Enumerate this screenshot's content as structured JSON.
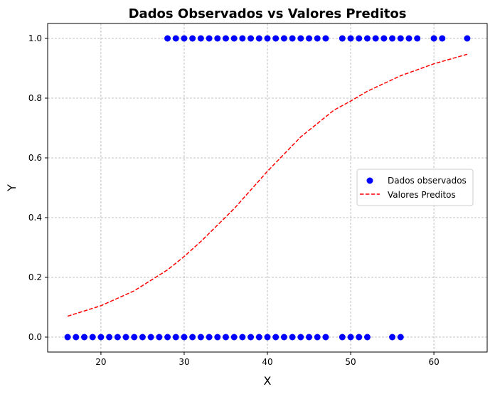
{
  "chart_data": {
    "type": "scatter",
    "title": "Dados Observados vs Valores Preditos",
    "xlabel": "X",
    "ylabel": "Y",
    "xlim": [
      13.6,
      66.4
    ],
    "ylim": [
      -0.05,
      1.05
    ],
    "xticks": [
      20,
      30,
      40,
      50,
      60
    ],
    "yticks": [
      0.0,
      0.2,
      0.4,
      0.6,
      0.8,
      1.0
    ],
    "xtick_labels": [
      "20",
      "30",
      "40",
      "50",
      "60"
    ],
    "ytick_labels": [
      "0.0",
      "0.2",
      "0.4",
      "0.6",
      "0.8",
      "1.0"
    ],
    "grid": true,
    "legend_position": "center-right",
    "series": [
      {
        "name": "Dados observados",
        "kind": "scatter",
        "color": "#0000ff",
        "points": [
          [
            16,
            0
          ],
          [
            17,
            0
          ],
          [
            18,
            0
          ],
          [
            19,
            0
          ],
          [
            20,
            0
          ],
          [
            21,
            0
          ],
          [
            22,
            0
          ],
          [
            23,
            0
          ],
          [
            24,
            0
          ],
          [
            25,
            0
          ],
          [
            26,
            0
          ],
          [
            27,
            0
          ],
          [
            28,
            0
          ],
          [
            29,
            0
          ],
          [
            30,
            0
          ],
          [
            31,
            0
          ],
          [
            32,
            0
          ],
          [
            33,
            0
          ],
          [
            34,
            0
          ],
          [
            35,
            0
          ],
          [
            36,
            0
          ],
          [
            37,
            0
          ],
          [
            38,
            0
          ],
          [
            39,
            0
          ],
          [
            40,
            0
          ],
          [
            41,
            0
          ],
          [
            42,
            0
          ],
          [
            43,
            0
          ],
          [
            44,
            0
          ],
          [
            45,
            0
          ],
          [
            46,
            0
          ],
          [
            47,
            0
          ],
          [
            49,
            0
          ],
          [
            50,
            0
          ],
          [
            51,
            0
          ],
          [
            52,
            0
          ],
          [
            55,
            0
          ],
          [
            56,
            0
          ],
          [
            28,
            1
          ],
          [
            29,
            1
          ],
          [
            30,
            1
          ],
          [
            31,
            1
          ],
          [
            32,
            1
          ],
          [
            33,
            1
          ],
          [
            34,
            1
          ],
          [
            35,
            1
          ],
          [
            36,
            1
          ],
          [
            37,
            1
          ],
          [
            38,
            1
          ],
          [
            39,
            1
          ],
          [
            40,
            1
          ],
          [
            41,
            1
          ],
          [
            42,
            1
          ],
          [
            43,
            1
          ],
          [
            44,
            1
          ],
          [
            45,
            1
          ],
          [
            46,
            1
          ],
          [
            47,
            1
          ],
          [
            49,
            1
          ],
          [
            50,
            1
          ],
          [
            51,
            1
          ],
          [
            52,
            1
          ],
          [
            53,
            1
          ],
          [
            54,
            1
          ],
          [
            55,
            1
          ],
          [
            56,
            1
          ],
          [
            57,
            1
          ],
          [
            58,
            1
          ],
          [
            60,
            1
          ],
          [
            61,
            1
          ],
          [
            64,
            1
          ]
        ]
      },
      {
        "name": "Valores Preditos",
        "kind": "line",
        "style": "dashed",
        "color": "#ff0000",
        "x": [
          16,
          20,
          24,
          28,
          30,
          32,
          36,
          40,
          44,
          48,
          50,
          52,
          56,
          60,
          64
        ],
        "y": [
          0.07,
          0.105,
          0.155,
          0.225,
          0.27,
          0.32,
          0.43,
          0.555,
          0.67,
          0.76,
          0.79,
          0.823,
          0.875,
          0.915,
          0.947
        ]
      }
    ]
  }
}
